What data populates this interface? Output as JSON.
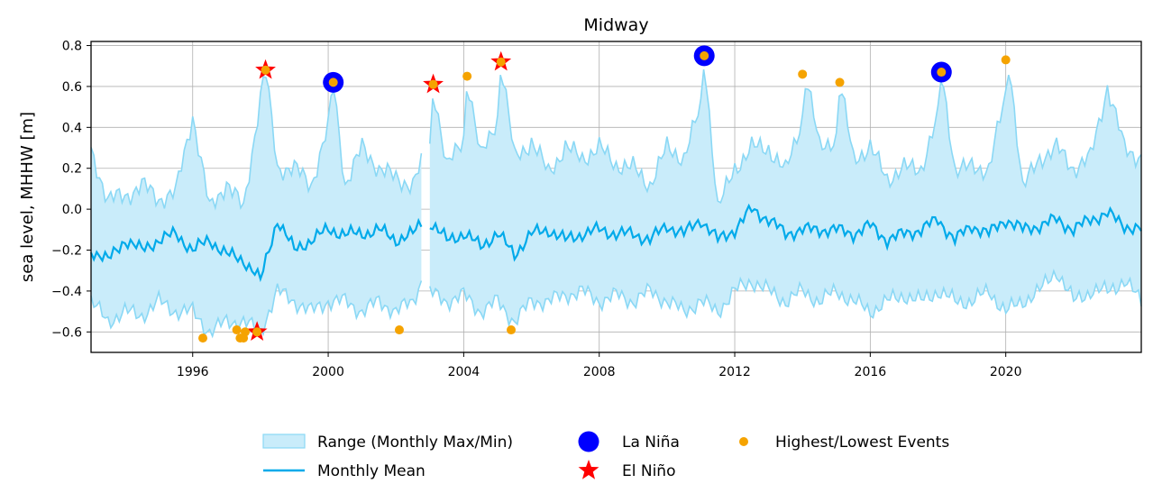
{
  "chart_data": {
    "type": "line",
    "title": "Midway",
    "xlabel": "",
    "ylabel": "sea level, MHHW [m]",
    "xlim": [
      1993.0,
      2024.0
    ],
    "ylim": [
      -0.7,
      0.82
    ],
    "x_ticks": [
      1996,
      2000,
      2004,
      2008,
      2012,
      2016,
      2020
    ],
    "y_ticks": [
      -0.6,
      -0.4,
      -0.2,
      0.0,
      0.2,
      0.4,
      0.6,
      0.8
    ],
    "y_tick_labels": [
      "−0.6",
      "−0.4",
      "−0.2",
      "0.0",
      "0.2",
      "0.4",
      "0.6",
      "0.8"
    ],
    "grid": true,
    "legend_position": "bottom",
    "colors": {
      "range_fill": "#c9ecfa",
      "range_edge": "#8ad8f5",
      "mean": "#00aaea",
      "la_nina": "#0000ff",
      "el_nino": "#ff0000",
      "events": "#f5a300"
    },
    "data_gap": [
      2002.75,
      2002.92
    ],
    "series": [
      {
        "name": "Range (Monthly Max/Min)",
        "kind": "band",
        "max_anchor": [
          [
            1993.0,
            0.28
          ],
          [
            1993.5,
            0.05
          ],
          [
            1994.0,
            0.06
          ],
          [
            1994.5,
            0.12
          ],
          [
            1995.0,
            0.05
          ],
          [
            1995.5,
            0.08
          ],
          [
            1996.0,
            0.46
          ],
          [
            1996.5,
            0.0
          ],
          [
            1997.0,
            0.13
          ],
          [
            1997.5,
            0.0
          ],
          [
            1998.0,
            0.55
          ],
          [
            1998.15,
            0.68
          ],
          [
            1998.5,
            0.2
          ],
          [
            1999.0,
            0.2
          ],
          [
            1999.5,
            0.12
          ],
          [
            2000.0,
            0.4
          ],
          [
            2000.15,
            0.62
          ],
          [
            2000.5,
            0.12
          ],
          [
            2001.0,
            0.3
          ],
          [
            2001.5,
            0.2
          ],
          [
            2002.0,
            0.15
          ],
          [
            2002.5,
            0.12
          ],
          [
            2002.75,
            0.22
          ],
          [
            2002.92,
            0.05
          ],
          [
            2003.1,
            0.61
          ],
          [
            2003.5,
            0.2
          ],
          [
            2004.0,
            0.35
          ],
          [
            2004.1,
            0.65
          ],
          [
            2004.5,
            0.25
          ],
          [
            2005.0,
            0.45
          ],
          [
            2005.1,
            0.72
          ],
          [
            2005.5,
            0.25
          ],
          [
            2006.0,
            0.33
          ],
          [
            2006.5,
            0.18
          ],
          [
            2007.0,
            0.3
          ],
          [
            2007.5,
            0.25
          ],
          [
            2008.0,
            0.3
          ],
          [
            2008.5,
            0.22
          ],
          [
            2009.0,
            0.2
          ],
          [
            2009.5,
            0.12
          ],
          [
            2010.0,
            0.3
          ],
          [
            2010.5,
            0.25
          ],
          [
            2011.0,
            0.5
          ],
          [
            2011.1,
            0.75
          ],
          [
            2011.5,
            0.0
          ],
          [
            2012.0,
            0.2
          ],
          [
            2012.5,
            0.3
          ],
          [
            2013.0,
            0.3
          ],
          [
            2013.5,
            0.18
          ],
          [
            2014.0,
            0.45
          ],
          [
            2014.1,
            0.66
          ],
          [
            2014.5,
            0.3
          ],
          [
            2015.0,
            0.35
          ],
          [
            2015.1,
            0.62
          ],
          [
            2015.5,
            0.25
          ],
          [
            2016.0,
            0.3
          ],
          [
            2016.5,
            0.15
          ],
          [
            2017.0,
            0.2
          ],
          [
            2017.5,
            0.2
          ],
          [
            2018.0,
            0.45
          ],
          [
            2018.1,
            0.67
          ],
          [
            2018.5,
            0.2
          ],
          [
            2019.0,
            0.2
          ],
          [
            2019.5,
            0.2
          ],
          [
            2020.0,
            0.55
          ],
          [
            2020.1,
            0.73
          ],
          [
            2020.5,
            0.1
          ],
          [
            2021.0,
            0.25
          ],
          [
            2021.5,
            0.3
          ],
          [
            2022.0,
            0.2
          ],
          [
            2022.5,
            0.25
          ],
          [
            2023.0,
            0.6
          ],
          [
            2023.5,
            0.3
          ],
          [
            2024.0,
            0.25
          ]
        ],
        "min_anchor": [
          [
            1993.0,
            -0.45
          ],
          [
            1993.5,
            -0.55
          ],
          [
            1994.0,
            -0.5
          ],
          [
            1994.5,
            -0.52
          ],
          [
            1995.0,
            -0.45
          ],
          [
            1995.5,
            -0.5
          ],
          [
            1996.0,
            -0.5
          ],
          [
            1996.5,
            -0.6
          ],
          [
            1997.0,
            -0.55
          ],
          [
            1997.5,
            -0.55
          ],
          [
            1998.0,
            -0.6
          ],
          [
            1998.5,
            -0.4
          ],
          [
            1999.0,
            -0.45
          ],
          [
            1999.5,
            -0.5
          ],
          [
            2000.0,
            -0.45
          ],
          [
            2000.5,
            -0.45
          ],
          [
            2001.0,
            -0.5
          ],
          [
            2001.5,
            -0.45
          ],
          [
            2002.0,
            -0.5
          ],
          [
            2002.5,
            -0.45
          ],
          [
            2002.75,
            -0.35
          ],
          [
            2002.92,
            -0.4
          ],
          [
            2003.5,
            -0.45
          ],
          [
            2004.0,
            -0.42
          ],
          [
            2004.5,
            -0.5
          ],
          [
            2005.0,
            -0.45
          ],
          [
            2005.5,
            -0.55
          ],
          [
            2006.0,
            -0.45
          ],
          [
            2006.5,
            -0.45
          ],
          [
            2007.0,
            -0.42
          ],
          [
            2007.5,
            -0.4
          ],
          [
            2008.0,
            -0.45
          ],
          [
            2008.5,
            -0.42
          ],
          [
            2009.0,
            -0.45
          ],
          [
            2009.5,
            -0.4
          ],
          [
            2010.0,
            -0.45
          ],
          [
            2010.5,
            -0.5
          ],
          [
            2011.0,
            -0.45
          ],
          [
            2011.5,
            -0.5
          ],
          [
            2012.0,
            -0.4
          ],
          [
            2012.5,
            -0.35
          ],
          [
            2013.0,
            -0.4
          ],
          [
            2013.5,
            -0.45
          ],
          [
            2014.0,
            -0.4
          ],
          [
            2014.5,
            -0.45
          ],
          [
            2015.0,
            -0.4
          ],
          [
            2015.5,
            -0.45
          ],
          [
            2016.0,
            -0.5
          ],
          [
            2016.5,
            -0.45
          ],
          [
            2017.0,
            -0.42
          ],
          [
            2017.5,
            -0.45
          ],
          [
            2018.0,
            -0.4
          ],
          [
            2018.5,
            -0.45
          ],
          [
            2019.0,
            -0.45
          ],
          [
            2019.5,
            -0.4
          ],
          [
            2020.0,
            -0.5
          ],
          [
            2020.5,
            -0.45
          ],
          [
            2021.0,
            -0.4
          ],
          [
            2021.5,
            -0.3
          ],
          [
            2022.0,
            -0.45
          ],
          [
            2022.5,
            -0.4
          ],
          [
            2023.0,
            -0.4
          ],
          [
            2023.5,
            -0.35
          ],
          [
            2024.0,
            -0.45
          ]
        ]
      },
      {
        "name": "Monthly Mean",
        "kind": "line",
        "anchor": [
          [
            1993.0,
            -0.2
          ],
          [
            1993.5,
            -0.25
          ],
          [
            1994.0,
            -0.15
          ],
          [
            1994.5,
            -0.2
          ],
          [
            1995.0,
            -0.15
          ],
          [
            1995.5,
            -0.12
          ],
          [
            1996.0,
            -0.2
          ],
          [
            1996.5,
            -0.15
          ],
          [
            1997.0,
            -0.22
          ],
          [
            1997.5,
            -0.25
          ],
          [
            1997.8,
            -0.3
          ],
          [
            1998.0,
            -0.35
          ],
          [
            1998.5,
            -0.05
          ],
          [
            1999.0,
            -0.2
          ],
          [
            1999.5,
            -0.15
          ],
          [
            2000.0,
            -0.1
          ],
          [
            2000.5,
            -0.12
          ],
          [
            2001.0,
            -0.12
          ],
          [
            2001.5,
            -0.1
          ],
          [
            2002.0,
            -0.15
          ],
          [
            2002.5,
            -0.12
          ],
          [
            2002.75,
            -0.07
          ],
          [
            2002.92,
            -0.05
          ],
          [
            2003.5,
            -0.15
          ],
          [
            2004.0,
            -0.12
          ],
          [
            2004.5,
            -0.18
          ],
          [
            2005.0,
            -0.12
          ],
          [
            2005.5,
            -0.22
          ],
          [
            2006.0,
            -0.12
          ],
          [
            2006.5,
            -0.1
          ],
          [
            2007.0,
            -0.15
          ],
          [
            2007.5,
            -0.12
          ],
          [
            2008.0,
            -0.1
          ],
          [
            2008.5,
            -0.12
          ],
          [
            2009.0,
            -0.12
          ],
          [
            2009.5,
            -0.15
          ],
          [
            2010.0,
            -0.08
          ],
          [
            2010.5,
            -0.12
          ],
          [
            2011.0,
            -0.05
          ],
          [
            2011.5,
            -0.15
          ],
          [
            2012.0,
            -0.1
          ],
          [
            2012.5,
            0.0
          ],
          [
            2013.0,
            -0.05
          ],
          [
            2013.5,
            -0.12
          ],
          [
            2014.0,
            -0.1
          ],
          [
            2014.5,
            -0.1
          ],
          [
            2015.0,
            -0.1
          ],
          [
            2015.5,
            -0.12
          ],
          [
            2016.0,
            -0.08
          ],
          [
            2016.5,
            -0.15
          ],
          [
            2017.0,
            -0.12
          ],
          [
            2017.5,
            -0.1
          ],
          [
            2018.0,
            -0.05
          ],
          [
            2018.5,
            -0.15
          ],
          [
            2019.0,
            -0.08
          ],
          [
            2019.5,
            -0.12
          ],
          [
            2020.0,
            -0.05
          ],
          [
            2020.5,
            -0.1
          ],
          [
            2021.0,
            -0.08
          ],
          [
            2021.5,
            -0.05
          ],
          [
            2022.0,
            -0.1
          ],
          [
            2022.5,
            -0.05
          ],
          [
            2023.0,
            -0.02
          ],
          [
            2023.5,
            -0.08
          ],
          [
            2024.0,
            -0.1
          ]
        ]
      }
    ],
    "la_nina": [
      [
        2000.15,
        0.62
      ],
      [
        2011.1,
        0.75
      ],
      [
        2018.1,
        0.67
      ]
    ],
    "el_nino": [
      [
        1998.15,
        0.68
      ],
      [
        2003.1,
        0.61
      ],
      [
        2005.1,
        0.72
      ],
      [
        1997.9,
        -0.6
      ]
    ],
    "events": [
      [
        1996.3,
        -0.63
      ],
      [
        1997.3,
        -0.59
      ],
      [
        1997.4,
        -0.63
      ],
      [
        1997.5,
        -0.63
      ],
      [
        1997.55,
        -0.6
      ],
      [
        1997.9,
        -0.6
      ],
      [
        1998.15,
        0.68
      ],
      [
        2000.15,
        0.62
      ],
      [
        2002.1,
        -0.59
      ],
      [
        2003.1,
        0.61
      ],
      [
        2004.1,
        0.65
      ],
      [
        2005.1,
        0.72
      ],
      [
        2005.4,
        -0.59
      ],
      [
        2011.1,
        0.75
      ],
      [
        2014.0,
        0.66
      ],
      [
        2015.1,
        0.62
      ],
      [
        2018.1,
        0.67
      ],
      [
        2020.0,
        0.73
      ]
    ],
    "legend": [
      {
        "label": "Range (Monthly Max/Min)",
        "marker": "band"
      },
      {
        "label": "Monthly Mean",
        "marker": "line"
      },
      {
        "label": "La Niña",
        "marker": "circle"
      },
      {
        "label": "El Niño",
        "marker": "star"
      },
      {
        "label": "Highest/Lowest Events",
        "marker": "dot"
      }
    ]
  }
}
